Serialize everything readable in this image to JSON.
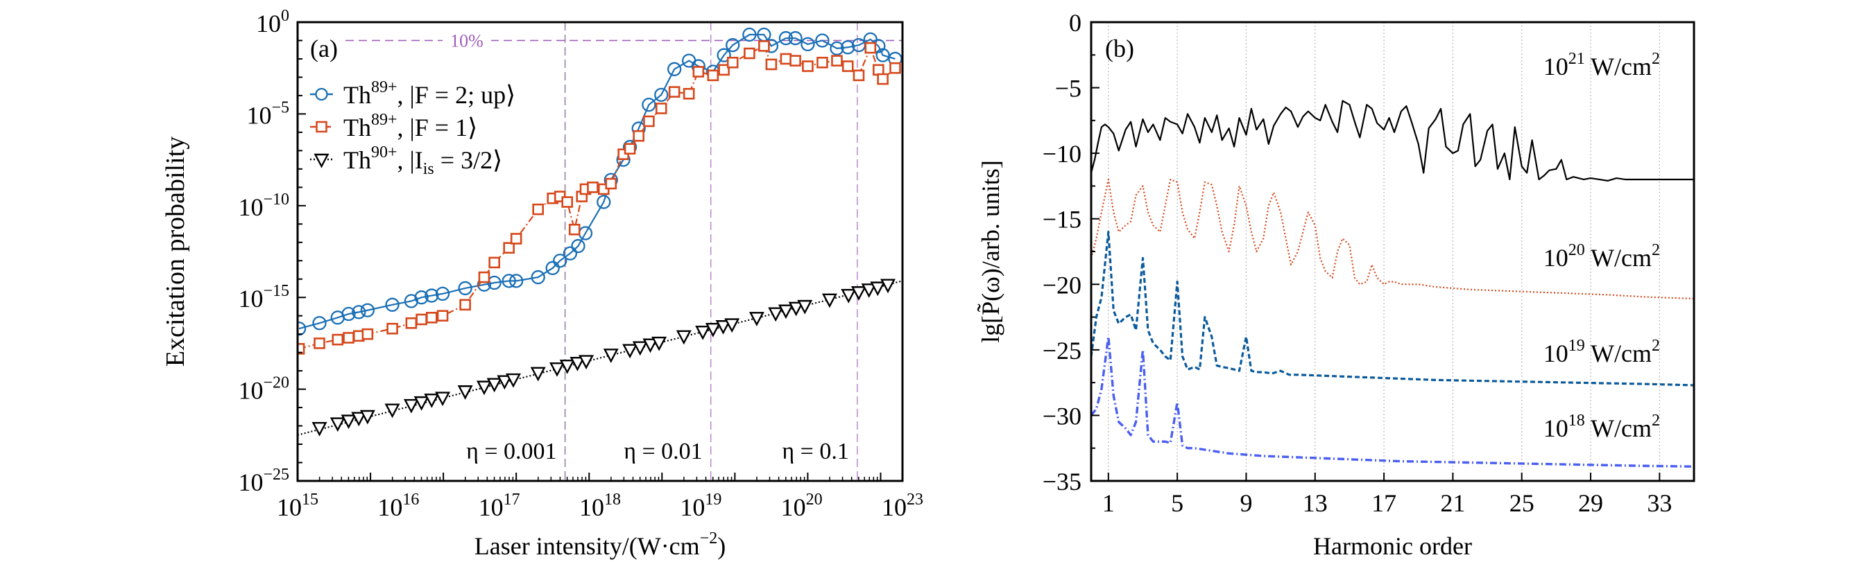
{
  "chart_data": [
    {
      "panel": "a",
      "type": "scatter",
      "panel_label": "(a)",
      "xlabel": "Laser intensity/(W·cm",
      "xlabel_sup": "−2",
      "xlabel_tail": ")",
      "ylabel": "Excitation probability",
      "xscale": "log",
      "yscale": "log",
      "xlim_log10": [
        15,
        23.3
      ],
      "ylim_log10": [
        -25,
        0
      ],
      "x_tick_labels": [
        {
          "base": "10",
          "exp": "15"
        },
        {
          "base": "10",
          "exp": "16"
        },
        {
          "base": "10",
          "exp": "17"
        },
        {
          "base": "10",
          "exp": "18"
        },
        {
          "base": "10",
          "exp": "19"
        },
        {
          "base": "10",
          "exp": "20"
        },
        {
          "base": "10",
          "exp": "23"
        }
      ],
      "y_ticks_log10": [
        0,
        -5,
        -10,
        -15,
        -20,
        -25
      ],
      "y_tick_labels": [
        {
          "base": "10",
          "exp": "0"
        },
        {
          "base": "10",
          "exp": "−5"
        },
        {
          "base": "10",
          "exp": "−10"
        },
        {
          "base": "10",
          "exp": "−15"
        },
        {
          "base": "10",
          "exp": "−20"
        },
        {
          "base": "10",
          "exp": "−25"
        }
      ],
      "reference_line": {
        "label": "10%",
        "y_log10": -1,
        "color": "#a05cb8"
      },
      "eta_lines": [
        {
          "label": "η = 0.001",
          "x_log10": 18.67
        },
        {
          "label": "η = 0.01",
          "x_log10": 20.67
        },
        {
          "label": "η = 0.1",
          "x_log10": 22.68
        }
      ],
      "legend": {
        "placement": "upper-left"
      },
      "series": [
        {
          "name": "Th89+, |F = 2; up⟩",
          "legend_main": "Th",
          "legend_sup": "89+",
          "legend_tail": ", |F = 2; up⟩",
          "marker": "circle",
          "line": "solid",
          "color": "#1a6fb5",
          "x_log10": [
            15.02,
            15.3,
            15.55,
            15.7,
            15.84,
            15.96,
            16.3,
            16.56,
            16.7,
            16.84,
            16.99,
            17.3,
            17.56,
            17.7,
            17.9,
            18.0,
            18.3,
            18.5,
            18.6,
            18.74,
            18.85,
            18.95,
            19.2,
            19.3,
            19.47,
            19.56,
            19.68,
            19.82,
            19.99,
            20.17,
            20.37,
            20.5,
            20.7,
            20.85,
            20.97,
            21.2,
            21.4,
            21.5,
            21.7,
            21.83,
            22.0,
            22.2,
            22.4,
            22.55,
            22.7,
            22.86,
            22.97,
            23.03,
            23.2
          ],
          "y_log10": [
            -16.7,
            -16.4,
            -16.1,
            -15.9,
            -15.8,
            -15.7,
            -15.4,
            -15.2,
            -15.0,
            -14.9,
            -14.8,
            -14.5,
            -14.3,
            -14.2,
            -14.1,
            -14.1,
            -13.9,
            -13.4,
            -13.0,
            -12.6,
            -12.2,
            -11.5,
            -9.8,
            -8.6,
            -7.5,
            -6.8,
            -5.8,
            -4.5,
            -3.96,
            -2.56,
            -2.1,
            -2.4,
            -2.7,
            -1.8,
            -1.25,
            -0.68,
            -0.68,
            -1.3,
            -0.87,
            -0.87,
            -1.2,
            -1.0,
            -1.43,
            -1.37,
            -1.25,
            -0.94,
            -1.3,
            -1.8,
            -2.0
          ]
        },
        {
          "name": "Th89+, |F = 1⟩",
          "legend_main": "Th",
          "legend_sup": "89+",
          "legend_tail": ", |F = 1⟩",
          "marker": "square",
          "line": "dashdot",
          "color": "#d6471a",
          "x_log10": [
            15.02,
            15.3,
            15.55,
            15.7,
            15.84,
            15.96,
            16.3,
            16.56,
            16.7,
            16.84,
            16.99,
            17.3,
            17.56,
            17.7,
            17.9,
            18.0,
            18.3,
            18.5,
            18.6,
            18.7,
            18.8,
            18.9,
            18.95,
            19.05,
            19.2,
            19.3,
            19.47,
            19.56,
            19.68,
            19.82,
            19.99,
            20.17,
            20.37,
            20.5,
            20.7,
            20.85,
            20.97,
            21.2,
            21.4,
            21.5,
            21.7,
            21.83,
            22.0,
            22.2,
            22.4,
            22.55,
            22.7,
            22.86,
            22.97,
            23.03,
            23.2
          ],
          "y_log10": [
            -17.8,
            -17.5,
            -17.3,
            -17.2,
            -17.1,
            -17.0,
            -16.7,
            -16.4,
            -16.2,
            -16.1,
            -16.0,
            -15.4,
            -13.9,
            -13.1,
            -12.3,
            -11.8,
            -10.2,
            -9.6,
            -9.5,
            -9.8,
            -11.3,
            -9.5,
            -9.1,
            -9.0,
            -9.1,
            -8.8,
            -7.2,
            -6.9,
            -6.2,
            -5.4,
            -4.7,
            -3.8,
            -3.9,
            -2.7,
            -2.9,
            -2.6,
            -2.2,
            -1.7,
            -1.3,
            -2.3,
            -2.0,
            -2.1,
            -2.4,
            -2.2,
            -2.1,
            -2.4,
            -2.9,
            -1.4,
            -2.6,
            -3.1,
            -2.5
          ]
        },
        {
          "name": "Th90+, |I_is = 3/2⟩",
          "legend_main": "Th",
          "legend_sup": "90+",
          "legend_tail": ", |I",
          "legend_sub": "is",
          "legend_tail2": " = 3/2⟩",
          "marker": "triangle-down",
          "line": "dotted",
          "color": "#000000",
          "x_log10": [
            15.3,
            15.55,
            15.7,
            15.84,
            15.96,
            16.3,
            16.56,
            16.7,
            16.84,
            16.99,
            17.3,
            17.56,
            17.7,
            17.84,
            17.96,
            18.3,
            18.56,
            18.7,
            18.84,
            18.96,
            19.3,
            19.56,
            19.7,
            19.84,
            19.96,
            20.3,
            20.56,
            20.7,
            20.84,
            20.96,
            21.3,
            21.56,
            21.7,
            21.84,
            21.96,
            22.3,
            22.56,
            22.7,
            22.84,
            22.96,
            23.1
          ],
          "y_log10": [
            -22.1,
            -21.85,
            -21.7,
            -21.55,
            -21.45,
            -21.1,
            -20.85,
            -20.7,
            -20.55,
            -20.45,
            -20.1,
            -19.85,
            -19.7,
            -19.55,
            -19.45,
            -19.1,
            -18.85,
            -18.7,
            -18.55,
            -18.45,
            -18.1,
            -17.85,
            -17.7,
            -17.55,
            -17.45,
            -17.1,
            -16.85,
            -16.7,
            -16.55,
            -16.45,
            -16.1,
            -15.85,
            -15.7,
            -15.55,
            -15.45,
            -15.1,
            -14.85,
            -14.7,
            -14.55,
            -14.45,
            -14.3
          ]
        }
      ]
    },
    {
      "panel": "b",
      "type": "line",
      "panel_label": "(b)",
      "xlabel": "Harmonic order",
      "ylabel": "lg[P̃(ω)/arb. units]",
      "xlim": [
        0,
        35
      ],
      "ylim": [
        -35,
        0
      ],
      "x_ticks": [
        1,
        5,
        9,
        13,
        17,
        21,
        25,
        29,
        33
      ],
      "y_ticks": [
        0,
        -5,
        -10,
        -15,
        -20,
        -25,
        -30,
        -35
      ],
      "y_tick_labels": [
        "0",
        "−5",
        "−10",
        "−15",
        "−20",
        "−25",
        "−30",
        "−35"
      ],
      "grid": "vertical dotted at x ticks",
      "series": [
        {
          "name": "10^21 W/cm^2",
          "label_base": "10",
          "label_exp": "21",
          "label_unit": " W/cm",
          "label_unit_exp": "2",
          "line": "solid",
          "color": "#000000",
          "x": [
            0,
            0.2,
            0.4,
            0.6,
            0.8,
            1.0,
            1.3,
            1.6,
            2.0,
            2.3,
            2.6,
            3.0,
            3.3,
            3.6,
            4.0,
            4.3,
            4.6,
            5.0,
            5.3,
            5.6,
            6.0,
            6.3,
            6.6,
            7.0,
            7.3,
            7.6,
            8.0,
            8.3,
            8.6,
            9.0,
            9.3,
            9.6,
            10.0,
            10.3,
            10.6,
            11.0,
            11.3,
            11.6,
            12.0,
            12.3,
            12.6,
            13.0,
            13.3,
            13.6,
            14.0,
            14.3,
            14.6,
            15.0,
            15.3,
            15.6,
            16.0,
            16.3,
            16.6,
            17.0,
            17.3,
            17.6,
            18.0,
            18.3,
            18.6,
            19.0,
            19.3,
            19.6,
            20.0,
            20.3,
            20.6,
            21.0,
            21.3,
            21.6,
            22.0,
            22.3,
            22.6,
            23.0,
            23.3,
            23.6,
            24.0,
            24.3,
            24.6,
            25.0,
            25.3,
            25.6,
            26.0,
            26.3,
            26.6,
            27.0,
            27.3,
            27.6,
            28.0,
            28.3,
            28.6,
            29.0,
            29.5,
            30.0,
            30.5,
            31.0,
            31.5,
            32.0,
            33.0,
            34.0,
            35.0
          ],
          "y": [
            -11.5,
            -10.5,
            -9.2,
            -8.0,
            -7.8,
            -8.0,
            -8.5,
            -9.8,
            -8.2,
            -7.6,
            -9.5,
            -7.4,
            -8.4,
            -7.8,
            -9.0,
            -7.3,
            -7.6,
            -7.8,
            -8.5,
            -7.0,
            -8.0,
            -9.2,
            -7.3,
            -8.4,
            -7.1,
            -9.0,
            -8.1,
            -9.5,
            -7.3,
            -8.6,
            -6.6,
            -8.2,
            -7.4,
            -9.3,
            -7.9,
            -7.0,
            -6.5,
            -6.8,
            -8.0,
            -7.2,
            -6.8,
            -7.3,
            -7.5,
            -6.3,
            -7.6,
            -8.4,
            -6.0,
            -6.3,
            -7.6,
            -8.8,
            -6.3,
            -6.6,
            -7.7,
            -8.2,
            -7.3,
            -8.4,
            -6.8,
            -6.4,
            -7.6,
            -9.3,
            -11.5,
            -8.1,
            -7.4,
            -6.6,
            -9.5,
            -10.0,
            -9.8,
            -7.8,
            -7.0,
            -11.0,
            -10.5,
            -8.3,
            -7.8,
            -11.2,
            -10.0,
            -12.0,
            -8.0,
            -11.0,
            -11.5,
            -9.0,
            -12.0,
            -11.7,
            -11.3,
            -11.2,
            -10.5,
            -12.0,
            -11.8,
            -11.9,
            -12.0,
            -11.9,
            -12.0,
            -12.1,
            -11.9,
            -12.0,
            -12.0,
            -12.0,
            -12.0,
            -12.0,
            -12.0
          ]
        },
        {
          "name": "10^20 W/cm^2",
          "label_base": "10",
          "label_exp": "20",
          "label_unit": " W/cm",
          "label_unit_exp": "2",
          "line": "dotted",
          "color": "#d6471a",
          "x": [
            0,
            0.3,
            0.6,
            1.0,
            1.3,
            1.6,
            2.0,
            2.3,
            2.6,
            3.0,
            3.3,
            3.6,
            4.0,
            4.3,
            4.6,
            5.0,
            5.3,
            5.6,
            6.0,
            6.3,
            6.6,
            7.0,
            7.3,
            7.6,
            8.0,
            8.3,
            8.6,
            9.0,
            9.3,
            9.6,
            10.0,
            10.3,
            10.6,
            11.0,
            11.3,
            11.6,
            12.0,
            12.3,
            12.6,
            13.0,
            13.3,
            13.6,
            14.0,
            14.3,
            14.6,
            15.0,
            15.3,
            15.6,
            16.0,
            16.3,
            16.6,
            17.0,
            17.3,
            17.6,
            18.0,
            18.5,
            19.0,
            19.5,
            20.0,
            22.0,
            24.0,
            26.0,
            28.0,
            30.0,
            32.0,
            35.0
          ],
          "y": [
            -18.0,
            -16.5,
            -14.5,
            -12.0,
            -14.5,
            -16.0,
            -15.5,
            -15.2,
            -13.2,
            -12.5,
            -14.5,
            -15.5,
            -16.0,
            -14.0,
            -12.0,
            -12.2,
            -14.5,
            -15.8,
            -16.5,
            -14.5,
            -12.2,
            -12.4,
            -14.0,
            -16.0,
            -17.5,
            -15.5,
            -12.5,
            -14.0,
            -16.0,
            -17.5,
            -16.5,
            -14.0,
            -13.0,
            -14.5,
            -16.5,
            -18.5,
            -17.5,
            -16.0,
            -14.5,
            -15.5,
            -18.0,
            -19.0,
            -19.5,
            -17.5,
            -16.5,
            -17.0,
            -19.5,
            -20.0,
            -19.8,
            -18.5,
            -19.5,
            -20.0,
            -19.8,
            -19.8,
            -20.0,
            -20.0,
            -20.0,
            -20.1,
            -20.2,
            -20.4,
            -20.5,
            -20.6,
            -20.7,
            -20.8,
            -20.95,
            -21.1
          ]
        },
        {
          "name": "10^19 W/cm^2",
          "label_base": "10",
          "label_exp": "19",
          "label_unit": " W/cm",
          "label_unit_exp": "2",
          "line": "dashed",
          "color": "#0b5a9c",
          "x": [
            0,
            0.3,
            0.6,
            1.0,
            1.3,
            1.6,
            2.0,
            2.3,
            2.6,
            3.0,
            3.3,
            3.6,
            4.0,
            4.3,
            4.6,
            5.0,
            5.3,
            5.6,
            6.0,
            6.3,
            6.6,
            7.0,
            7.3,
            7.6,
            8.0,
            8.3,
            8.6,
            9.0,
            9.3,
            9.6,
            10.0,
            10.5,
            11.0,
            11.5,
            12.0,
            14.0,
            16.0,
            18.0,
            20.0,
            22.0,
            24.0,
            26.0,
            28.0,
            30.0,
            32.0,
            35.0
          ],
          "y": [
            -25.5,
            -22.5,
            -21.0,
            -16.0,
            -22.0,
            -23.0,
            -22.5,
            -22.3,
            -23.5,
            -18.0,
            -23.5,
            -24.5,
            -25.0,
            -25.5,
            -25.8,
            -19.8,
            -25.5,
            -26.5,
            -26.3,
            -26.5,
            -22.5,
            -24.0,
            -26.2,
            -26.3,
            -26.4,
            -26.5,
            -26.6,
            -24.0,
            -26.6,
            -26.7,
            -26.7,
            -26.8,
            -26.6,
            -26.9,
            -26.9,
            -27.0,
            -27.1,
            -27.2,
            -27.3,
            -27.35,
            -27.4,
            -27.45,
            -27.5,
            -27.55,
            -27.6,
            -27.7
          ]
        },
        {
          "name": "10^18 W/cm^2",
          "label_base": "10",
          "label_exp": "18",
          "label_unit": " W/cm",
          "label_unit_exp": "2",
          "line": "dashdot",
          "color": "#4a5ef0",
          "x": [
            0,
            0.3,
            0.6,
            1.0,
            1.3,
            1.6,
            2.0,
            2.3,
            2.6,
            3.0,
            3.3,
            3.6,
            4.0,
            4.3,
            4.6,
            5.0,
            5.3,
            5.6,
            6.0,
            7.0,
            8.0,
            9.0,
            10.0,
            12.0,
            14.0,
            16.0,
            18.0,
            20.0,
            22.0,
            24.0,
            26.0,
            28.0,
            30.0,
            32.0,
            35.0
          ],
          "y": [
            -30.0,
            -29.5,
            -28.0,
            -24.0,
            -28.5,
            -30.5,
            -31.0,
            -31.5,
            -30.5,
            -25.0,
            -31.5,
            -32.0,
            -32.0,
            -32.0,
            -32.1,
            -29.0,
            -32.3,
            -32.5,
            -32.5,
            -32.7,
            -32.9,
            -33.0,
            -33.1,
            -33.2,
            -33.3,
            -33.4,
            -33.5,
            -33.55,
            -33.6,
            -33.65,
            -33.7,
            -33.75,
            -33.8,
            -33.85,
            -33.9
          ]
        }
      ]
    }
  ]
}
